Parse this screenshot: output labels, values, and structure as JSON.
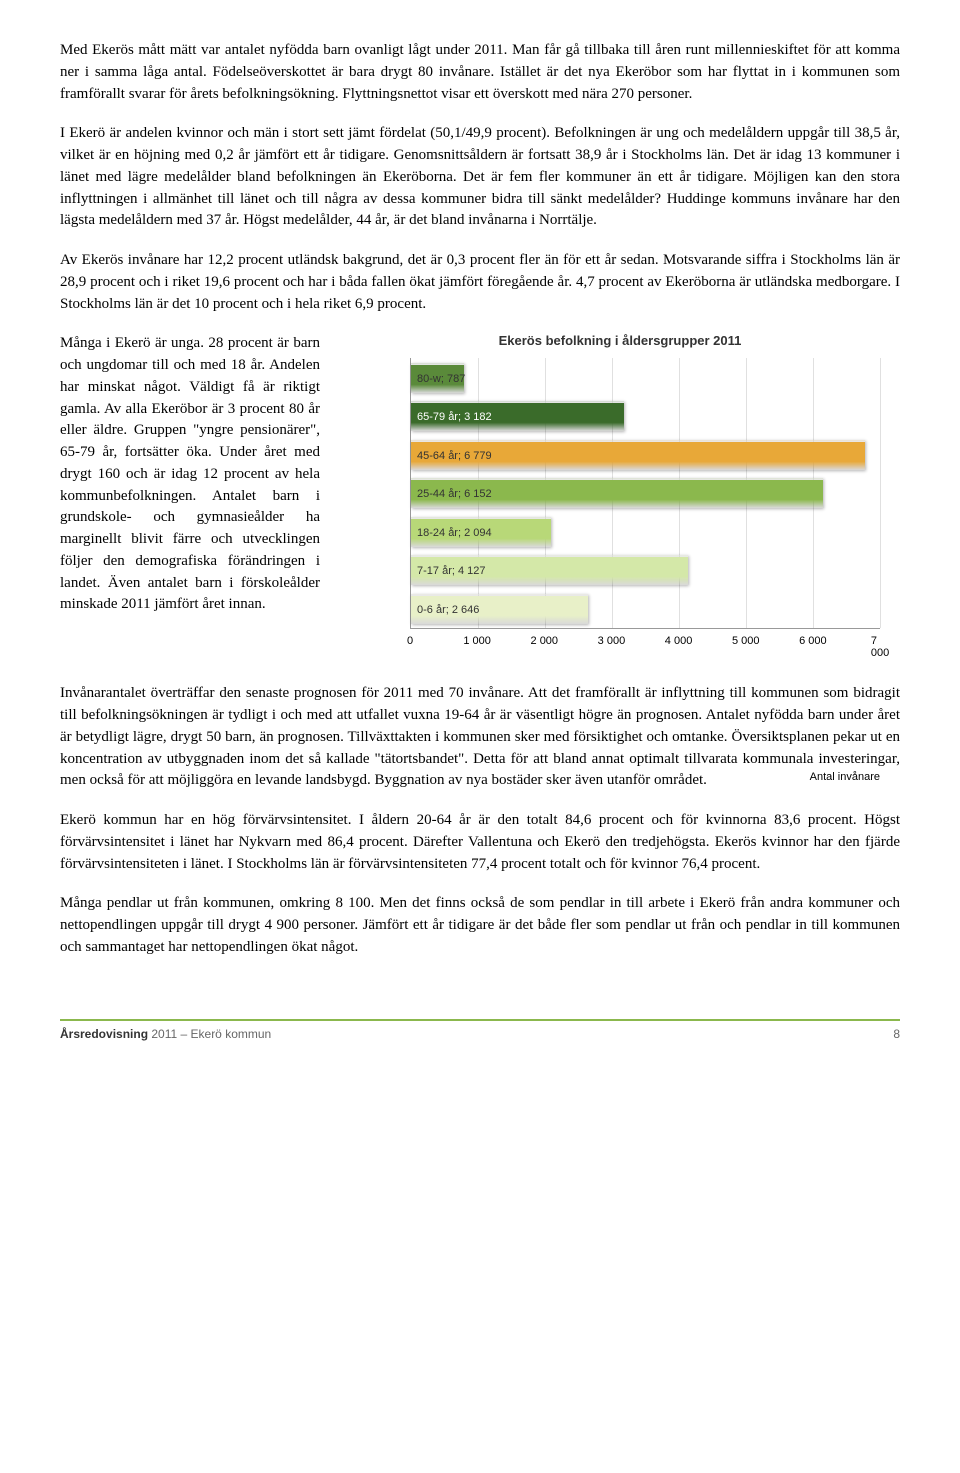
{
  "paragraphs": {
    "p1": "Med Ekerös mått mätt var antalet nyfödda barn ovanligt lågt under 2011. Man får gå tillbaka till åren runt millennieskiftet för att komma ner i samma låga antal. Födelseöverskottet är bara drygt 80 invånare. Istället är det nya Ekeröbor som har flyttat in i kommunen som framförallt svarar för årets befolkningsökning. Flyttningsnettot visar ett överskott med nära 270 personer.",
    "p2": "I Ekerö är andelen kvinnor och män i stort sett jämt fördelat (50,1/49,9 procent). Befolkningen är ung och medelåldern uppgår till 38,5 år, vilket är en höjning med 0,2 år jämfört ett år tidigare. Genomsnittsåldern är fortsatt 38,9 år i Stockholms län. Det är idag 13 kommuner i länet med lägre medelålder bland befolkningen än Ekeröborna. Det är fem fler kommuner än ett år tidigare. Möjligen kan den stora inflyttningen i allmänhet till länet och till några av dessa kommuner bidra till sänkt medelålder? Huddinge kommuns invånare har den lägsta medelåldern med 37 år. Högst medelålder, 44 år, är det bland invånarna i Norrtälje.",
    "p3": "Av Ekerös invånare har 12,2 procent utländsk bakgrund, det är 0,3 procent fler än för ett år sedan. Motsvarande siffra i Stockholms län är 28,9 procent och i riket 19,6 procent och har i båda fallen ökat jämfört föregående år. 4,7 procent av Ekeröborna är utländska medborgare. I Stockholms län är det 10 procent och i hela riket 6,9 procent.",
    "p4_left": "Många i Ekerö är unga. 28 procent är barn och ungdomar till och med 18 år. Andelen har minskat något. Väldigt få är riktigt gamla. Av alla Ekeröbor är 3 procent 80 år eller äldre. Gruppen \"yngre pensionärer\", 65-79 år, fortsätter öka. Under året med drygt 160 och är idag 12 procent av hela kommunbefolkningen. Antalet barn i grundskole- och gymnasieålder ha marginellt blivit färre och utvecklingen följer den demografiska förändringen i landet. Även antalet barn i förskoleålder minskade 2011 jämfört året innan.",
    "p5": "Invånarantalet överträffar den senaste prognosen för 2011 med 70 invånare. Att det framförallt är inflyttning till kommunen som bidragit till befolkningsökningen är tydligt i och med att utfallet vuxna 19-64 år är väsentligt högre än prognosen. Antalet nyfödda barn under året är betydligt lägre, drygt 50 barn, än prognosen. Tillväxttakten i kommunen sker med försiktighet och omtanke. Översiktsplanen pekar ut en koncentration av utbyggnaden inom det så kallade \"tätortsbandet\". Detta för att bland annat optimalt tillvarata kommunala investeringar, men också för att möjliggöra en levande landsbygd. Byggnation av nya bostäder sker även utanför området.",
    "p6": "Ekerö kommun har en hög förvärvsintensitet. I åldern 20-64 år är den totalt 84,6 procent och för kvinnorna 83,6 procent. Högst förvärvsintensitet i länet har Nykvarn med 86,4 procent. Därefter Vallentuna och Ekerö den tredjehögsta. Ekerös kvinnor har den fjärde förvärvsintensiteten i länet. I Stockholms län är förvärvsintensiteten 77,4 procent totalt och för kvinnor 76,4 procent.",
    "p7": "Många pendlar ut från kommunen, omkring 8 100. Men det finns också de som pendlar in till arbete i Ekerö från andra kommuner och nettopendlingen uppgår till drygt 4 900 personer. Jämfört ett år tidigare är det både fler som pendlar ut från och pendlar in till kommunen och sammantaget har nettopendlingen ökat något."
  },
  "chart": {
    "title": "Ekerös befolkning i åldersgrupper 2011",
    "x_axis_title": "Antal invånare",
    "x_max": 7000,
    "x_ticks": [
      0,
      1000,
      2000,
      3000,
      4000,
      5000,
      6000,
      7000
    ],
    "x_tick_labels": [
      "0",
      "1 000",
      "2 000",
      "3 000",
      "4 000",
      "5 000",
      "6 000",
      "7 000"
    ],
    "bars": [
      {
        "label": "80-w; 787",
        "value": 787,
        "color": "#5a8a3a",
        "text_color": "#333"
      },
      {
        "label": "65-79 år; 3 182",
        "value": 3182,
        "color": "#3a6b2a",
        "text_color": "#fff"
      },
      {
        "label": "45-64 år; 6 779",
        "value": 6779,
        "color": "#e8a838",
        "text_color": "#333"
      },
      {
        "label": "25-44 år; 6 152",
        "value": 6152,
        "color": "#8bb84d",
        "text_color": "#333"
      },
      {
        "label": "18-24 år; 2 094",
        "value": 2094,
        "color": "#b8d878",
        "text_color": "#333"
      },
      {
        "label": "7-17 år; 4 127",
        "value": 4127,
        "color": "#d4e8a8",
        "text_color": "#333"
      },
      {
        "label": "0-6 år; 2 646",
        "value": 2646,
        "color": "#e8f0c8",
        "text_color": "#333"
      }
    ]
  },
  "footer": {
    "left_bold": "Årsredovisning",
    "left_rest": " 2011 – Ekerö kommun",
    "page": "8"
  }
}
